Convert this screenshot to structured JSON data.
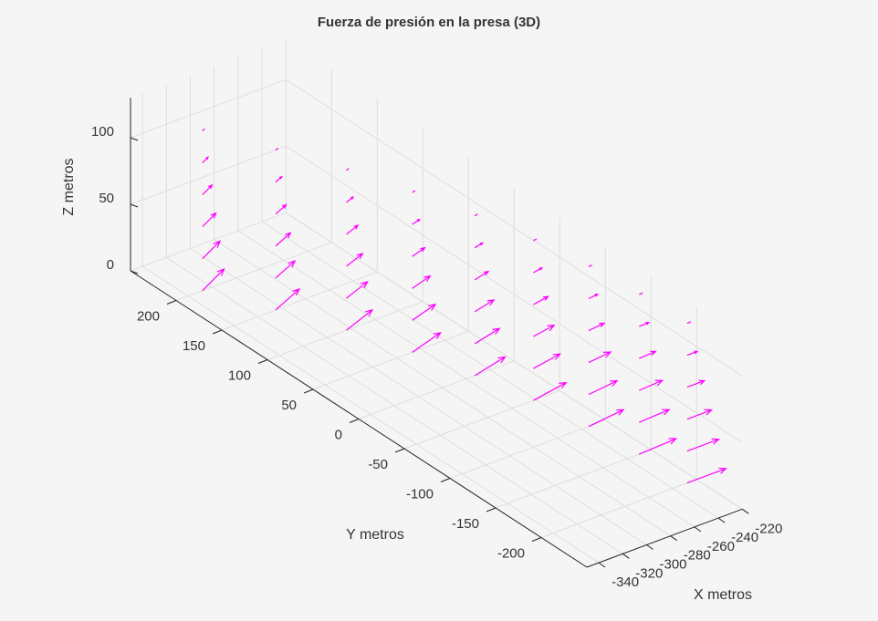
{
  "chart_data": {
    "type": "quiver3",
    "title": "Fuerza de presión en la presa (3D)",
    "xlabel": "X metros",
    "ylabel": "Y metros",
    "zlabel": "Z metros",
    "xlim": [
      -350,
      -220
    ],
    "ylim": [
      -250,
      250
    ],
    "zlim": [
      0,
      130
    ],
    "xticks": [
      -340,
      -320,
      -300,
      -280,
      -260,
      -240,
      -220
    ],
    "yticks": [
      -200,
      -150,
      -100,
      -50,
      0,
      50,
      100,
      150,
      200
    ],
    "zticks": [
      0,
      50,
      100
    ],
    "grid": true,
    "color": "#ff00ff",
    "z": [
      0,
      24,
      48,
      72,
      96,
      120
    ],
    "columns": [
      {
        "x": -228,
        "y": -200,
        "u": [
          32.5,
          26.5,
          20.5,
          14.5,
          8.5,
          2.5
        ],
        "v": [
          0,
          0,
          0,
          0,
          0,
          0
        ]
      },
      {
        "x": -230,
        "y": -150,
        "u": [
          32.4,
          26.4,
          20.5,
          14.5,
          8.5,
          2.5
        ],
        "v": [
          2.0,
          1.6,
          1.3,
          0.9,
          0.5,
          0.2
        ]
      },
      {
        "x": -234,
        "y": -100,
        "u": [
          32.2,
          26.3,
          20.3,
          14.4,
          8.4,
          2.5
        ],
        "v": [
          4.0,
          3.3,
          2.5,
          1.8,
          1.1,
          0.3
        ]
      },
      {
        "x": -242,
        "y": -50,
        "u": [
          31.9,
          26.0,
          20.2,
          14.3,
          8.4,
          2.5
        ],
        "v": [
          6.0,
          4.9,
          3.8,
          2.7,
          1.6,
          0.5
        ]
      },
      {
        "x": -253,
        "y": 0,
        "u": [
          31.5,
          25.7,
          19.9,
          14.1,
          8.2,
          2.4
        ],
        "v": [
          7.9,
          6.4,
          5.0,
          3.5,
          2.1,
          0.6
        ]
      },
      {
        "x": -267,
        "y": 50,
        "u": [
          31.0,
          25.3,
          19.6,
          13.8,
          8.1,
          2.4
        ],
        "v": [
          9.7,
          7.9,
          6.1,
          4.3,
          2.5,
          0.7
        ]
      },
      {
        "x": -284,
        "y": 100,
        "u": [
          30.4,
          24.8,
          19.2,
          13.6,
          8.0,
          2.3
        ],
        "v": [
          11.4,
          9.3,
          7.2,
          5.1,
          3.0,
          0.9
        ]
      },
      {
        "x": -305,
        "y": 150,
        "u": [
          29.8,
          24.3,
          18.8,
          13.3,
          7.8,
          2.3
        ],
        "v": [
          13.0,
          10.6,
          8.2,
          5.8,
          3.4,
          1.0
        ]
      },
      {
        "x": -328,
        "y": 200,
        "u": [
          29.1,
          23.7,
          18.3,
          13.0,
          7.6,
          2.2
        ],
        "v": [
          14.5,
          11.8,
          9.2,
          6.5,
          3.8,
          1.1
        ]
      }
    ]
  }
}
